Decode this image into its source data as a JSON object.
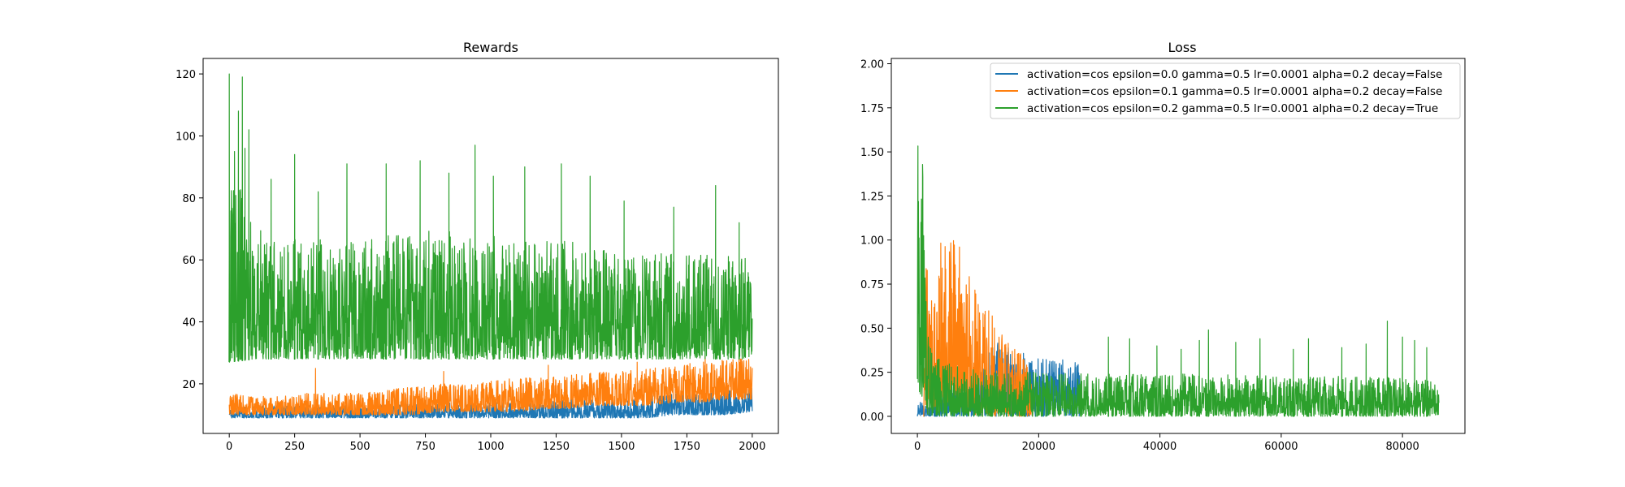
{
  "chart_data": [
    {
      "type": "line",
      "title": "Rewards",
      "xlabel": "",
      "ylabel": "",
      "xlim": [
        -100,
        2100
      ],
      "ylim": [
        4,
        125
      ],
      "xticks": [
        0,
        250,
        500,
        750,
        1000,
        1250,
        1500,
        1750,
        2000
      ],
      "yticks": [
        20,
        40,
        60,
        80,
        100,
        120
      ],
      "grid": false,
      "legend": false,
      "series": [
        {
          "color": "#1f77b4",
          "x": [
            0,
            100,
            200,
            300,
            400,
            500,
            600,
            700,
            800,
            900,
            1000,
            1100,
            1200,
            1300,
            1400,
            1500,
            1600,
            1700,
            1800,
            1900,
            2000
          ],
          "low": [
            9,
            9,
            9,
            9,
            9,
            9,
            9,
            9,
            9,
            9,
            9,
            9,
            9,
            9,
            9,
            9,
            9,
            10,
            10,
            10,
            11
          ],
          "high": [
            12,
            13,
            13,
            13,
            13,
            13,
            13,
            14,
            14,
            14,
            14,
            14,
            14,
            15,
            15,
            15,
            16,
            17,
            17,
            18,
            19
          ]
        },
        {
          "color": "#ff7f0e",
          "x": [
            0,
            100,
            200,
            300,
            400,
            500,
            600,
            700,
            800,
            900,
            1000,
            1100,
            1200,
            1300,
            1400,
            1500,
            1600,
            1700,
            1800,
            1900,
            2000
          ],
          "low": [
            10,
            10,
            10,
            10,
            10,
            10,
            10,
            10,
            11,
            11,
            11,
            11,
            12,
            12,
            13,
            13,
            13,
            14,
            14,
            15,
            15
          ],
          "high": [
            17,
            16,
            16,
            17,
            17,
            17,
            18,
            19,
            20,
            20,
            21,
            22,
            22,
            23,
            24,
            24,
            25,
            26,
            27,
            28,
            28
          ],
          "spikes": [
            [
              330,
              25
            ],
            [
              820,
              24
            ],
            [
              1220,
              26
            ],
            [
              1560,
              27
            ],
            [
              1820,
              29
            ],
            [
              1950,
              30
            ]
          ]
        },
        {
          "color": "#2ca02c",
          "x": [
            0,
            100,
            200,
            300,
            400,
            500,
            600,
            700,
            800,
            900,
            1000,
            1100,
            1200,
            1300,
            1400,
            1500,
            1600,
            1700,
            1800,
            1900,
            2000
          ],
          "low": [
            27,
            28,
            28,
            28,
            28,
            28,
            28,
            28,
            28,
            28,
            28,
            28,
            28,
            28,
            28,
            28,
            28,
            28,
            28,
            28,
            28
          ],
          "high": [
            95,
            70,
            68,
            68,
            65,
            66,
            68,
            68,
            70,
            68,
            68,
            66,
            66,
            66,
            64,
            62,
            62,
            62,
            62,
            62,
            62
          ],
          "spikes": [
            [
              0,
              120
            ],
            [
              20,
              95
            ],
            [
              35,
              108
            ],
            [
              50,
              119
            ],
            [
              60,
              96
            ],
            [
              75,
              102
            ],
            [
              160,
              86
            ],
            [
              250,
              94
            ],
            [
              340,
              82
            ],
            [
              450,
              91
            ],
            [
              600,
              91
            ],
            [
              730,
              92
            ],
            [
              840,
              88
            ],
            [
              940,
              97
            ],
            [
              1010,
              87
            ],
            [
              1130,
              90
            ],
            [
              1270,
              91
            ],
            [
              1380,
              87
            ],
            [
              1510,
              79
            ],
            [
              1700,
              77
            ],
            [
              1860,
              84
            ],
            [
              1950,
              72
            ]
          ]
        }
      ]
    },
    {
      "type": "line",
      "title": "Loss",
      "xlabel": "",
      "ylabel": "",
      "xlim": [
        -4300,
        90300
      ],
      "ylim": [
        -0.097,
        2.03
      ],
      "xticks": [
        0,
        20000,
        40000,
        60000,
        80000
      ],
      "yticks": [
        "0.00",
        "0.25",
        "0.50",
        "0.75",
        "1.00",
        "1.25",
        "1.50",
        "1.75",
        "2.00"
      ],
      "grid": false,
      "legend": "top-right",
      "series": [
        {
          "name": "activation=cos epsilon=0.0 gamma=0.5 lr=0.0001 alpha=0.2 decay=False",
          "color": "#1f77b4",
          "x": [
            0,
            500,
            1000,
            2000,
            4000,
            7000,
            10000,
            13000,
            16000,
            19000,
            22000,
            25000,
            27000
          ],
          "high": [
            0.12,
            0.1,
            0.07,
            0.06,
            0.12,
            0.22,
            0.3,
            0.42,
            0.38,
            0.36,
            0.33,
            0.34,
            0.28
          ],
          "low": [
            0,
            0,
            0,
            0,
            0,
            0,
            0,
            0,
            0,
            0,
            0,
            0,
            0
          ]
        },
        {
          "name": "activation=cos epsilon=0.1 gamma=0.5 lr=0.0001 alpha=0.2 decay=False",
          "color": "#ff7f0e",
          "x": [
            1000,
            1500,
            2000,
            3000,
            4000,
            5000,
            6000,
            7000,
            8000,
            9000,
            10000,
            12000,
            14000,
            16000,
            18000,
            19000
          ],
          "high": [
            0.1,
            0.95,
            0.8,
            0.62,
            1.09,
            0.95,
            1.03,
            0.99,
            0.85,
            0.76,
            0.7,
            0.6,
            0.46,
            0.4,
            0.32,
            0.28
          ],
          "low": [
            0,
            0,
            0.02,
            0.05,
            0.08,
            0.07,
            0.05,
            0.04,
            0.03,
            0.02,
            0,
            0,
            0,
            0,
            0,
            0
          ]
        },
        {
          "name": "activation=cos epsilon=0.2 gamma=0.5 lr=0.0001 alpha=0.2 decay=True",
          "color": "#2ca02c",
          "x": [
            0,
            500,
            1000,
            1500,
            2000,
            3000,
            5000,
            8000,
            12000,
            20000,
            30000,
            40000,
            50000,
            60000,
            70000,
            80000,
            86000
          ],
          "high": [
            1.6,
            1.93,
            1.5,
            0.95,
            0.5,
            0.35,
            0.3,
            0.28,
            0.26,
            0.25,
            0.24,
            0.24,
            0.24,
            0.23,
            0.23,
            0.22,
            0.2
          ],
          "low": [
            0.2,
            0.1,
            0.05,
            0.02,
            0,
            0,
            0,
            0,
            0,
            0,
            0,
            0,
            0,
            0,
            0,
            0,
            0
          ],
          "spikes": [
            [
              31500,
              0.45
            ],
            [
              35000,
              0.44
            ],
            [
              39500,
              0.4
            ],
            [
              43500,
              0.38
            ],
            [
              46500,
              0.43
            ],
            [
              48000,
              0.49
            ],
            [
              52500,
              0.42
            ],
            [
              56500,
              0.44
            ],
            [
              62000,
              0.38
            ],
            [
              64500,
              0.44
            ],
            [
              70000,
              0.39
            ],
            [
              74000,
              0.41
            ],
            [
              77500,
              0.54
            ],
            [
              80000,
              0.45
            ],
            [
              82000,
              0.43
            ],
            [
              84000,
              0.39
            ]
          ]
        }
      ]
    }
  ]
}
